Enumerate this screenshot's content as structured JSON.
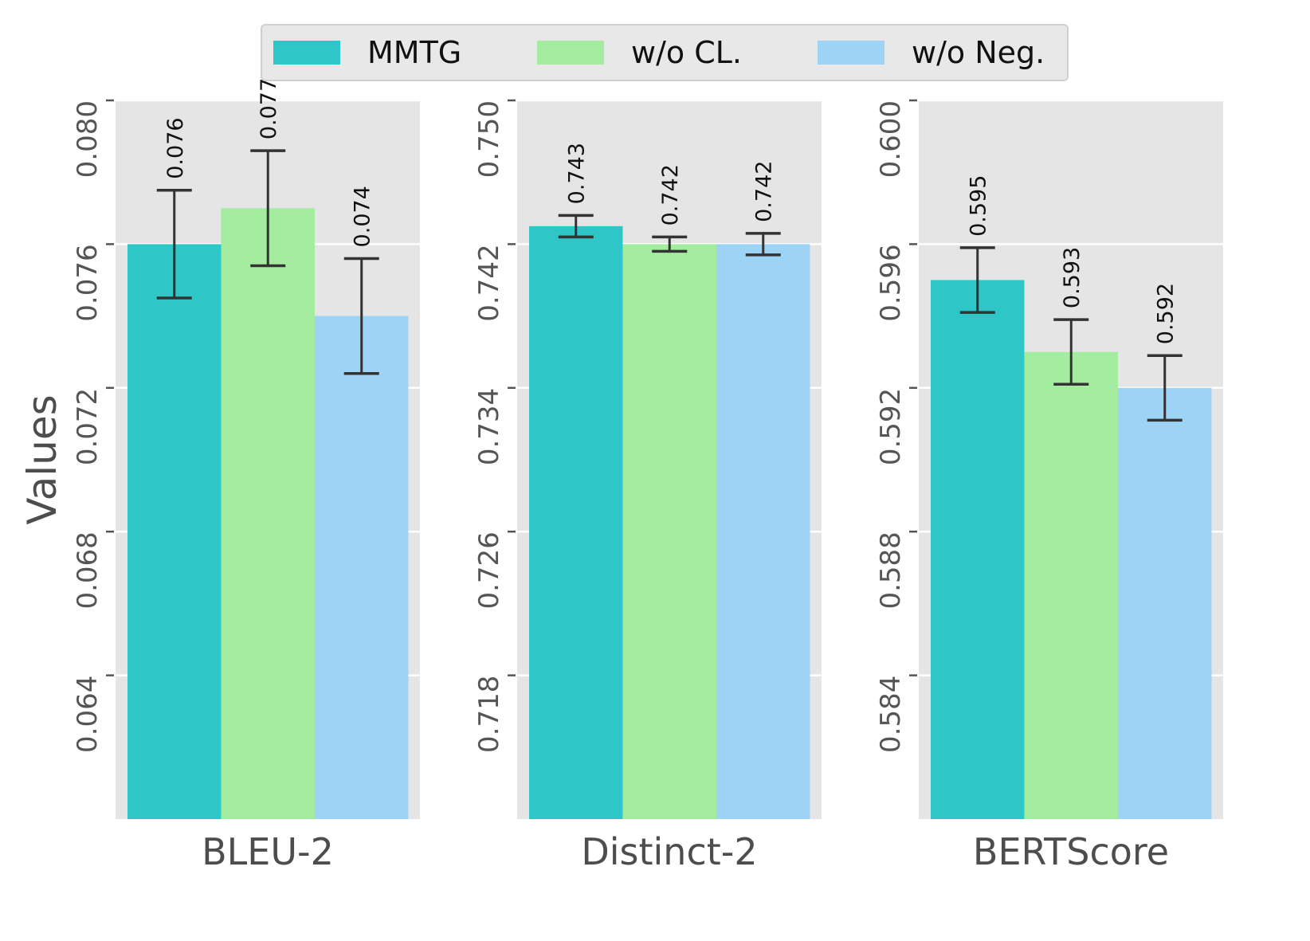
{
  "chart_data": {
    "type": "bar",
    "title": "",
    "ylabel": "Values",
    "legend": {
      "placement": "top-center",
      "entries": [
        "MMTG",
        "w/o CL.",
        "w/o Neg."
      ]
    },
    "series_colors": {
      "MMTG": "#2ec6c6",
      "w/o CL.": "#a3eca0",
      "w/o Neg.": "#9dd3f5"
    },
    "grid": true,
    "panels": [
      {
        "xlabel": "BLEU-2",
        "ylim": [
          0.06,
          0.08
        ],
        "yticks": [
          0.064,
          0.068,
          0.072,
          0.076,
          0.08
        ],
        "ytick_labels": [
          "0.064",
          "0.068",
          "0.072",
          "0.076",
          "0.080"
        ],
        "series": [
          {
            "name": "MMTG",
            "value": 0.076,
            "error": 0.0015,
            "label": "0.076"
          },
          {
            "name": "w/o CL.",
            "value": 0.077,
            "error": 0.0016,
            "label": "0.077"
          },
          {
            "name": "w/o Neg.",
            "value": 0.074,
            "error": 0.0016,
            "label": "0.074"
          }
        ]
      },
      {
        "xlabel": "Distinct-2",
        "ylim": [
          0.71,
          0.75
        ],
        "yticks": [
          0.718,
          0.726,
          0.734,
          0.742,
          0.75
        ],
        "ytick_labels": [
          "0.718",
          "0.726",
          "0.734",
          "0.742",
          "0.750"
        ],
        "series": [
          {
            "name": "MMTG",
            "value": 0.743,
            "error": 0.0006,
            "label": "0.743"
          },
          {
            "name": "w/o CL.",
            "value": 0.742,
            "error": 0.0004,
            "label": "0.742"
          },
          {
            "name": "w/o Neg.",
            "value": 0.742,
            "error": 0.0006,
            "label": "0.742"
          }
        ]
      },
      {
        "xlabel": "BERTScore",
        "ylim": [
          0.58,
          0.6
        ],
        "yticks": [
          0.584,
          0.588,
          0.592,
          0.596,
          0.6
        ],
        "ytick_labels": [
          "0.584",
          "0.588",
          "0.592",
          "0.596",
          "0.600"
        ],
        "series": [
          {
            "name": "MMTG",
            "value": 0.595,
            "error": 0.0009,
            "label": "0.595"
          },
          {
            "name": "w/o CL.",
            "value": 0.593,
            "error": 0.0009,
            "label": "0.593"
          },
          {
            "name": "w/o Neg.",
            "value": 0.592,
            "error": 0.0009,
            "label": "0.592"
          }
        ]
      }
    ]
  }
}
